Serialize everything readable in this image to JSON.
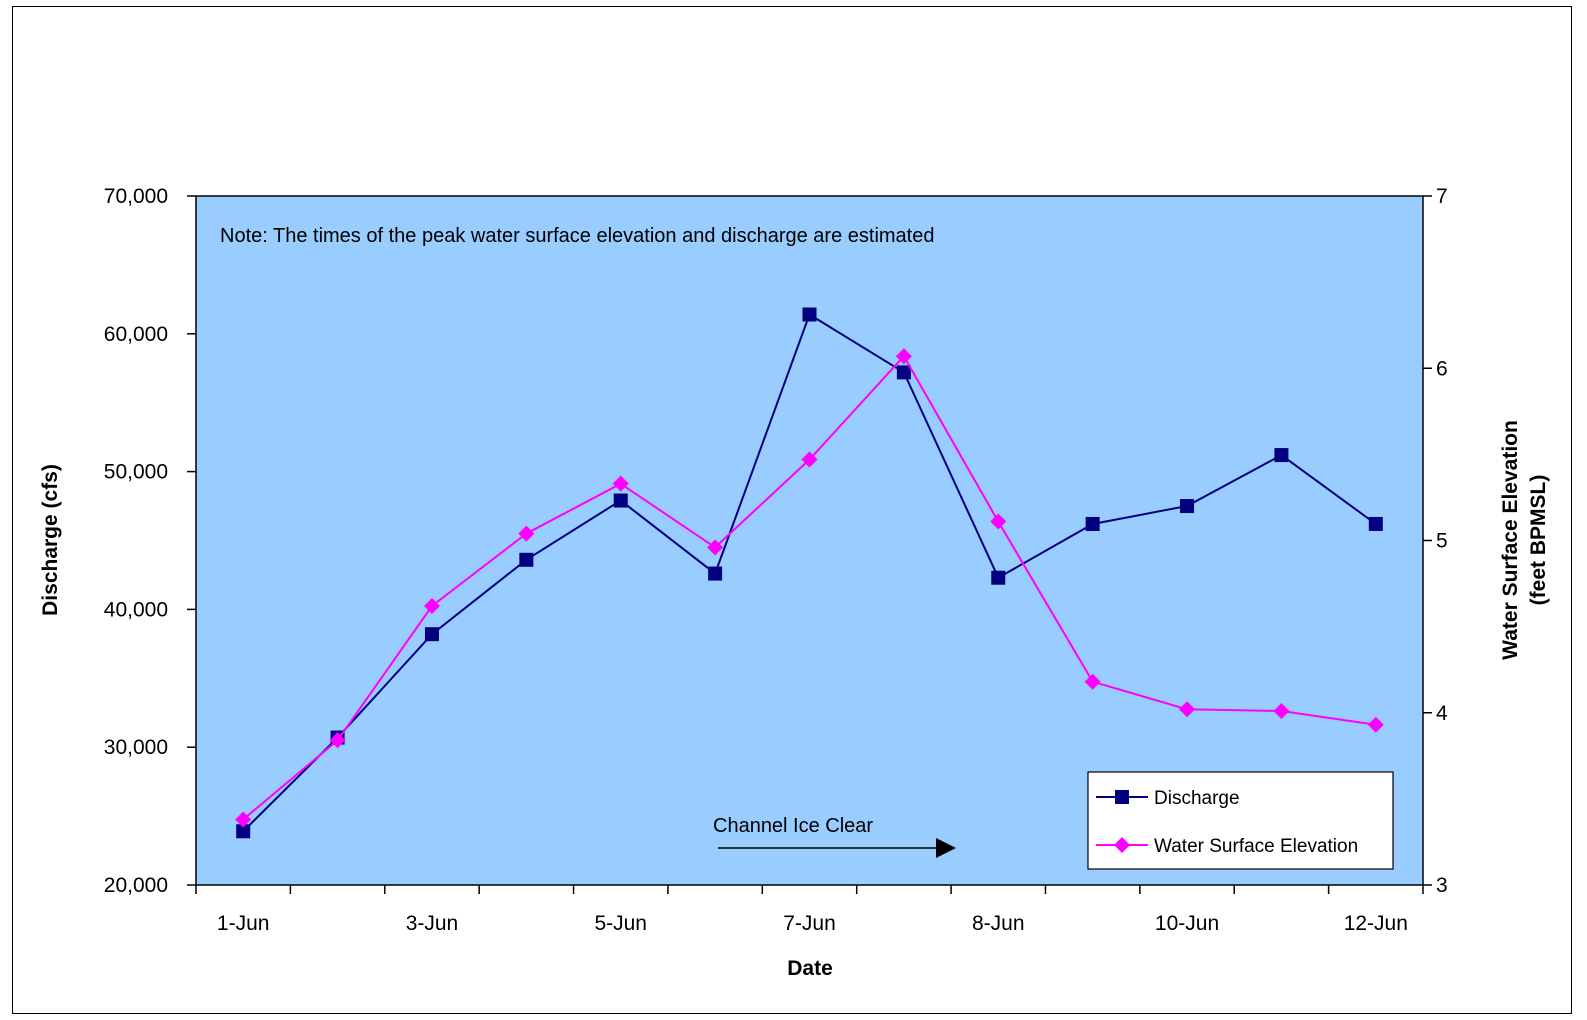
{
  "chart_data": {
    "type": "line",
    "title": "",
    "note": "Note: The times of the peak water surface elevation and discharge are estimated",
    "annotation": "Channel Ice Clear",
    "xlabel": "Date",
    "ylabel": "Discharge (cfs)",
    "y2label_line1": "Water Surface Elevation",
    "y2label_line2": "(feet BPMSL)",
    "x_tick_labels": [
      "1-Jun",
      "3-Jun",
      "5-Jun",
      "7-Jun",
      "8-Jun",
      "10-Jun",
      "12-Jun"
    ],
    "ylim": [
      20000,
      70000
    ],
    "y_ticks": [
      "20,000",
      "30,000",
      "40,000",
      "50,000",
      "60,000",
      "70,000"
    ],
    "y2lim": [
      3,
      7
    ],
    "y2_ticks": [
      "3",
      "4",
      "5",
      "6",
      "7"
    ],
    "grid": false,
    "legend_position": "bottom-right",
    "plot_background": "#99CCFF",
    "series": [
      {
        "name": "Discharge",
        "axis": "left",
        "color": "#000080",
        "marker": "square",
        "values": [
          23900,
          30700,
          38200,
          43600,
          47900,
          42600,
          61400,
          57200,
          42300,
          46200,
          47500,
          51200,
          46200
        ]
      },
      {
        "name": "Water Surface Elevation",
        "axis": "right",
        "color": "#FF00FF",
        "marker": "diamond",
        "values": [
          3.38,
          3.84,
          4.62,
          5.04,
          5.33,
          4.96,
          5.47,
          6.07,
          5.11,
          4.18,
          4.02,
          4.01,
          3.93
        ]
      }
    ]
  }
}
